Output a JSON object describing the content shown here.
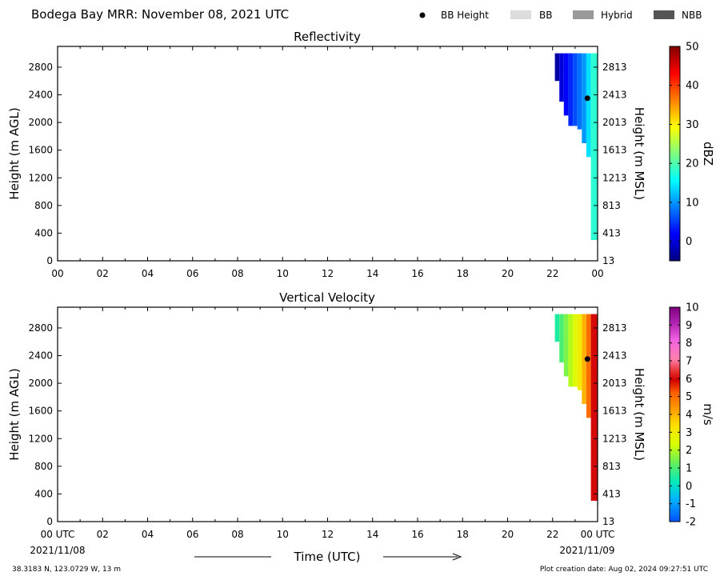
{
  "header": {
    "title": "Bodega Bay MRR:  November 08, 2021 UTC",
    "legend": [
      {
        "label": "BB Height",
        "kind": "dot",
        "color": "#000000"
      },
      {
        "label": "BB",
        "kind": "swatch",
        "color": "#dcdcdc"
      },
      {
        "label": "Hybrid",
        "kind": "swatch",
        "color": "#999999"
      },
      {
        "label": "NBB",
        "kind": "swatch",
        "color": "#555555"
      }
    ]
  },
  "footer": {
    "location": "38.3183 N, 123.0729 W, 13 m",
    "created": "Plot creation date: Aug 02, 2024 09:27:51 UTC",
    "start_date": "2021/11/08",
    "end_date": "2021/11/09",
    "xlabel": "Time (UTC)"
  },
  "chart_data": [
    {
      "type": "heatmap",
      "title": "Reflectivity",
      "xlabel": "",
      "ylabel": "Height (m AGL)",
      "y2label": "Height (m MSL)",
      "xlim": [
        0,
        24
      ],
      "ylim": [
        0,
        3100
      ],
      "xticks": [
        "00",
        "02",
        "04",
        "06",
        "08",
        "10",
        "12",
        "14",
        "16",
        "18",
        "20",
        "22",
        "00"
      ],
      "yticks": [
        0,
        400,
        800,
        1200,
        1600,
        2000,
        2400,
        2800
      ],
      "y2ticks": [
        "13",
        "413",
        "813",
        "1213",
        "1613",
        "2013",
        "2413",
        "2813"
      ],
      "colorbar": {
        "label": "dBZ",
        "min": -5,
        "max": 50,
        "ticks": [
          0,
          10,
          20,
          30,
          40,
          50
        ],
        "colormap": "jet"
      },
      "data_extent": {
        "x_start": 22.1,
        "x_end": 24.0,
        "y_top": 3000
      },
      "bb_height": {
        "x": 23.55,
        "y": 2350
      },
      "profile": [
        {
          "x": 22.2,
          "bottom": 2600,
          "value": -3
        },
        {
          "x": 22.4,
          "bottom": 2300,
          "value": 0
        },
        {
          "x": 22.6,
          "bottom": 2100,
          "value": 2
        },
        {
          "x": 22.8,
          "bottom": 1950,
          "value": 4
        },
        {
          "x": 23.0,
          "bottom": 1950,
          "value": 6
        },
        {
          "x": 23.2,
          "bottom": 1900,
          "value": 8
        },
        {
          "x": 23.4,
          "bottom": 1700,
          "value": 10
        },
        {
          "x": 23.6,
          "bottom": 1500,
          "value": 14
        },
        {
          "x": 23.8,
          "bottom": 300,
          "value": 18
        }
      ]
    },
    {
      "type": "heatmap",
      "title": "Vertical Velocity",
      "xlabel": "",
      "ylabel": "Height (m AGL)",
      "y2label": "Height (m MSL)",
      "xlim": [
        0,
        24
      ],
      "ylim": [
        0,
        3100
      ],
      "xticks": [
        "00 UTC",
        "02",
        "04",
        "06",
        "08",
        "10",
        "12",
        "14",
        "16",
        "18",
        "20",
        "22",
        "00 UTC"
      ],
      "yticks": [
        0,
        400,
        800,
        1200,
        1600,
        2000,
        2400,
        2800
      ],
      "y2ticks": [
        "13",
        "413",
        "813",
        "1213",
        "1613",
        "2013",
        "2413",
        "2813"
      ],
      "colorbar": {
        "label": "m/s",
        "min": -2,
        "max": 10,
        "ticks": [
          -2,
          -1,
          0,
          1,
          2,
          3,
          4,
          5,
          6,
          7,
          8,
          9,
          10
        ],
        "colormap": "velocity"
      },
      "data_extent": {
        "x_start": 22.1,
        "x_end": 24.0,
        "y_top": 3000
      },
      "bb_height": {
        "x": 23.55,
        "y": 2350
      },
      "profile": [
        {
          "x": 22.2,
          "bottom": 2600,
          "value": 0.5
        },
        {
          "x": 22.4,
          "bottom": 2300,
          "value": 1
        },
        {
          "x": 22.6,
          "bottom": 2100,
          "value": 1.5
        },
        {
          "x": 22.8,
          "bottom": 1950,
          "value": 2
        },
        {
          "x": 23.0,
          "bottom": 1950,
          "value": 2.5
        },
        {
          "x": 23.2,
          "bottom": 1900,
          "value": 3
        },
        {
          "x": 23.4,
          "bottom": 1700,
          "value": 4
        },
        {
          "x": 23.6,
          "bottom": 1500,
          "value": 5
        },
        {
          "x": 23.8,
          "bottom": 300,
          "value": 6
        }
      ]
    }
  ]
}
